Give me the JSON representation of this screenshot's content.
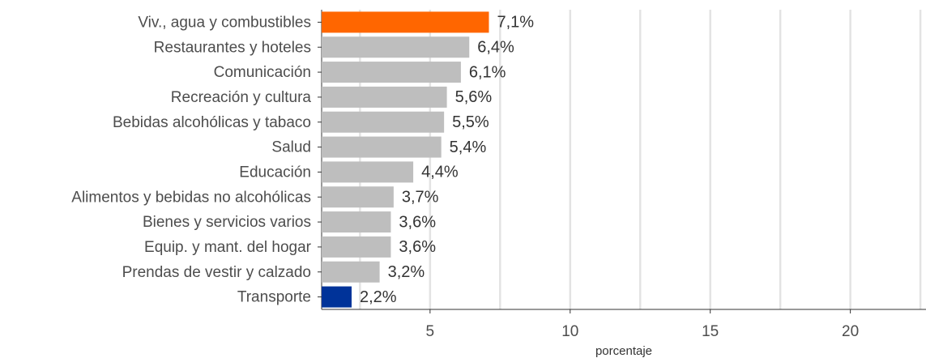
{
  "chart_data": {
    "type": "barh",
    "categories": [
      "Viv., agua y combustibles",
      "Restaurantes y hoteles",
      "Comunicación",
      "Recreación y cultura",
      "Bebidas alcohólicas y tabaco",
      "Salud",
      "Educación",
      "Alimentos y bebidas no alcohólicas",
      "Bienes y servicios varios",
      "Equip. y mant. del hogar",
      "Prendas de vestir y calzado",
      "Transporte"
    ],
    "values": [
      7.1,
      6.4,
      6.1,
      5.6,
      5.5,
      5.4,
      4.4,
      3.7,
      3.6,
      3.6,
      3.2,
      2.2
    ],
    "value_labels": [
      "7,1%",
      "6,4%",
      "6,1%",
      "5,6%",
      "5,5%",
      "5,4%",
      "4,4%",
      "3,7%",
      "3,6%",
      "3,6%",
      "3,2%",
      "2,2%"
    ],
    "colors": [
      "#ff6600",
      "#bebebe",
      "#bebebe",
      "#bebebe",
      "#bebebe",
      "#bebebe",
      "#bebebe",
      "#bebebe",
      "#bebebe",
      "#bebebe",
      "#bebebe",
      "#003399"
    ],
    "xlabel": "porcentaje",
    "xlim": [
      1.13,
      22.7
    ],
    "xticks": [
      5,
      10,
      15,
      20
    ],
    "minor_xticks": [
      2.5,
      7.5,
      12.5,
      17.5,
      22.5
    ],
    "grid": true
  }
}
